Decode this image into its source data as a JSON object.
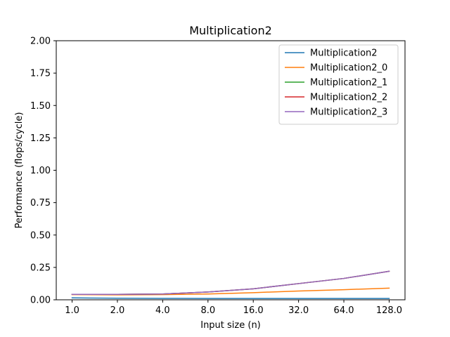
{
  "chart_data": {
    "type": "line",
    "title": "Multiplication2",
    "xlabel": "Input size (n)",
    "ylabel": "Performance (flops/cycle)",
    "x": [
      1,
      2,
      4,
      8,
      16,
      32,
      64,
      128
    ],
    "xtick_labels": [
      "1.0",
      "2.0",
      "4.0",
      "8.0",
      "16.0",
      "32.0",
      "64.0",
      "128.0"
    ],
    "x_scale": "log2",
    "ylim": [
      0.0,
      2.0
    ],
    "ytick_values": [
      0.0,
      0.25,
      0.5,
      0.75,
      1.0,
      1.25,
      1.5,
      1.75,
      2.0
    ],
    "ytick_labels": [
      "0.00",
      "0.25",
      "0.50",
      "0.75",
      "1.00",
      "1.25",
      "1.50",
      "1.75",
      "2.00"
    ],
    "grid": false,
    "legend_position": "top-right",
    "series": [
      {
        "name": "Multiplication2",
        "color": "#1f77b4",
        "values": [
          0.015,
          0.012,
          0.011,
          0.01,
          0.01,
          0.01,
          0.01,
          0.01
        ]
      },
      {
        "name": "Multiplication2_0",
        "color": "#ff7f0e",
        "values": [
          0.04,
          0.038,
          0.04,
          0.045,
          0.055,
          0.068,
          0.078,
          0.09
        ]
      },
      {
        "name": "Multiplication2_1",
        "color": "#2ca02c",
        "values": [
          0.042,
          0.042,
          0.045,
          0.06,
          0.085,
          0.125,
          0.165,
          0.22
        ]
      },
      {
        "name": "Multiplication2_2",
        "color": "#d62728",
        "values": [
          0.042,
          0.042,
          0.045,
          0.06,
          0.085,
          0.125,
          0.165,
          0.22
        ]
      },
      {
        "name": "Multiplication2_3",
        "color": "#9467bd",
        "values": [
          0.042,
          0.042,
          0.045,
          0.06,
          0.085,
          0.125,
          0.165,
          0.22
        ]
      }
    ]
  }
}
